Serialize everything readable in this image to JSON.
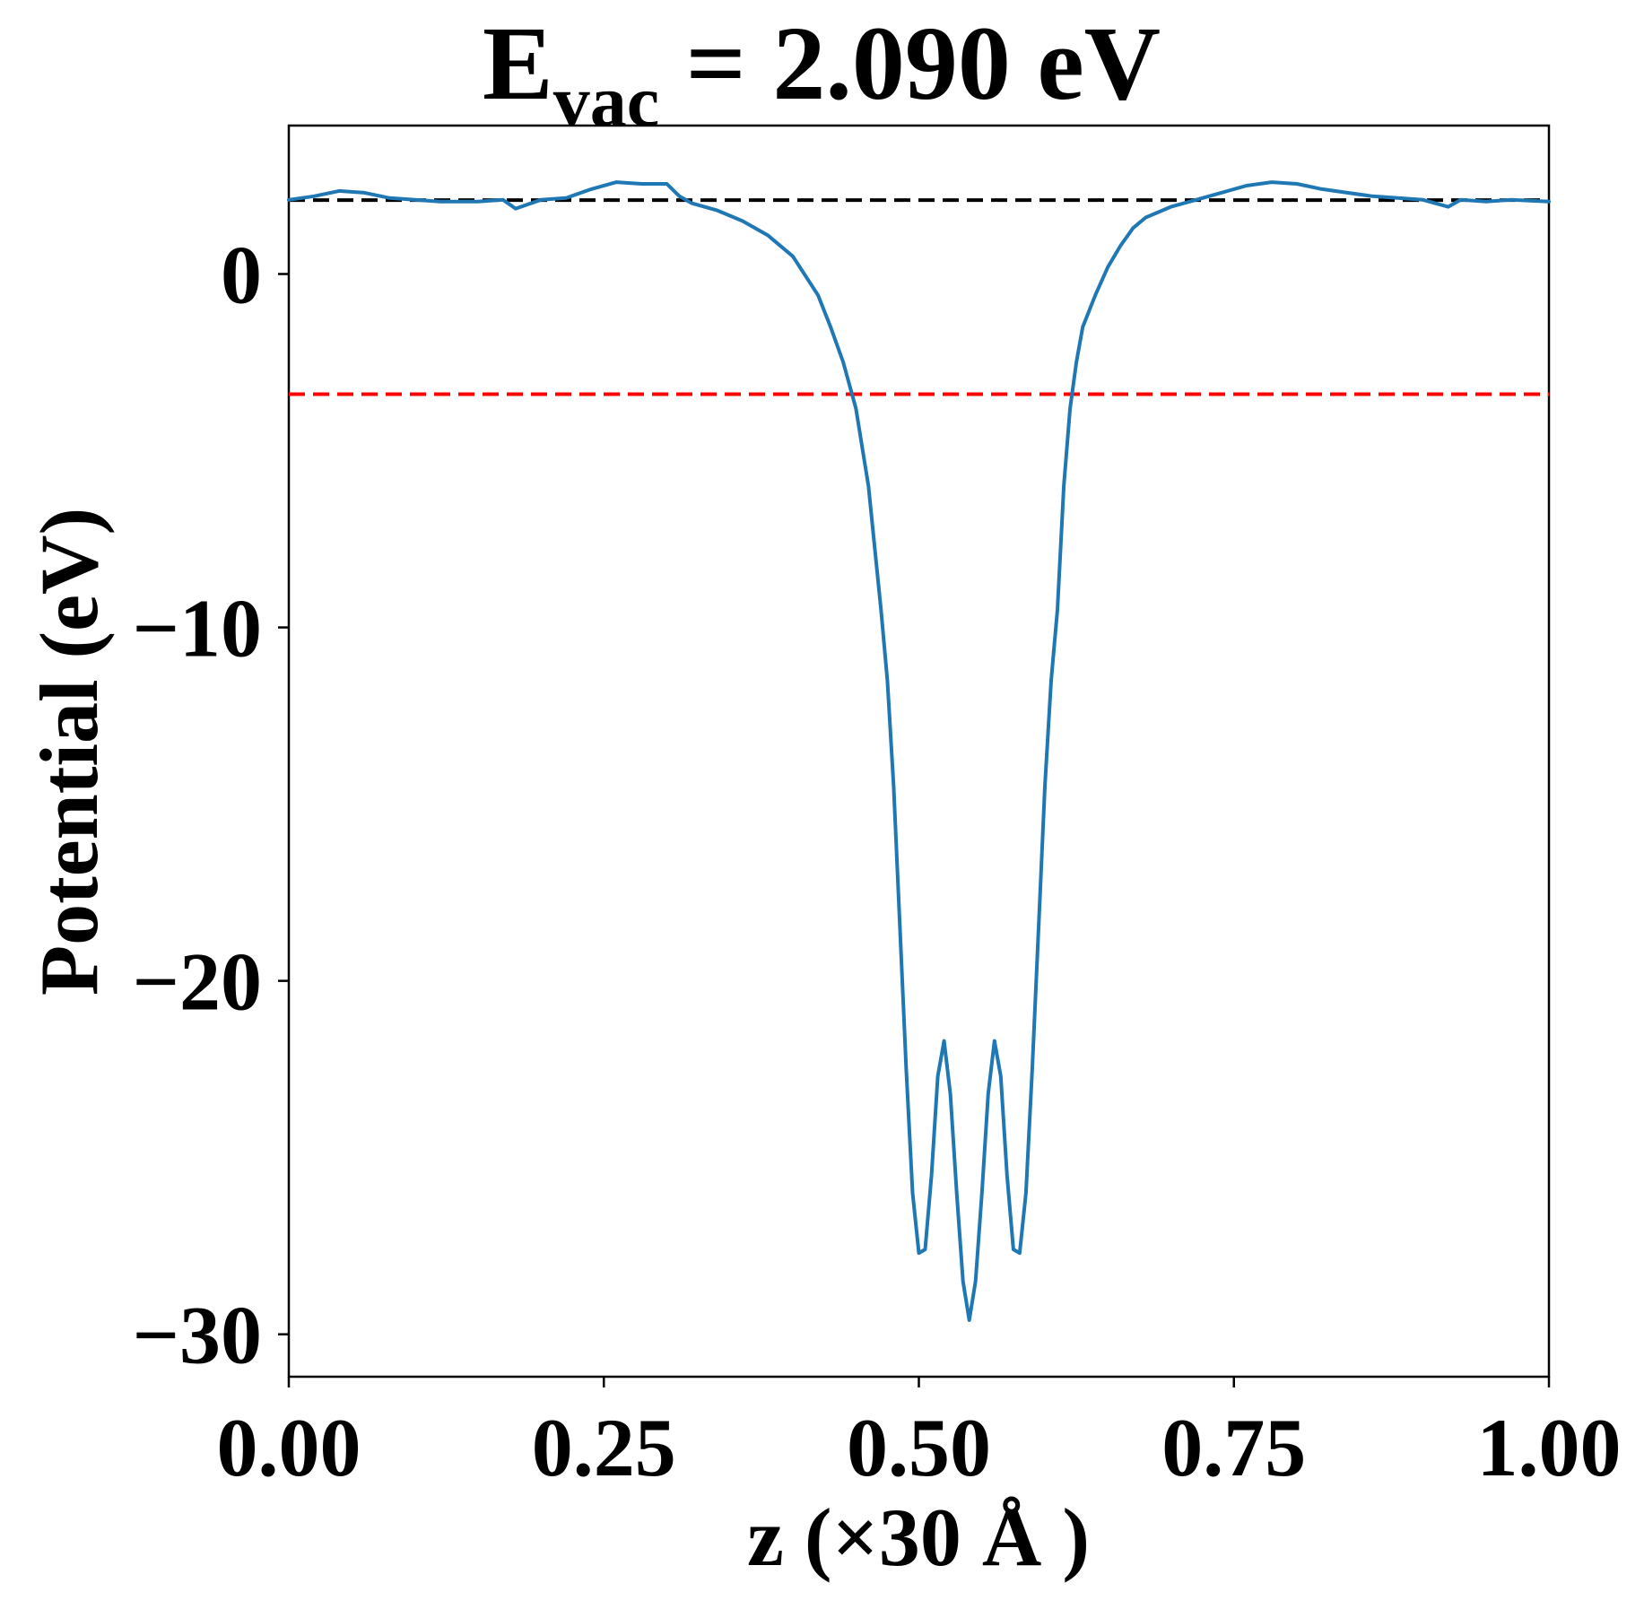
{
  "chart_data": {
    "type": "line",
    "title": "E",
    "title_sub": "vac",
    "title_rest": " = 2.090 eV",
    "xlabel": "z (×30 Å )",
    "ylabel": "Potential (eV)",
    "xlim": [
      0.0,
      1.0
    ],
    "ylim": [
      -31.2,
      4.2
    ],
    "x_ticks": [
      0.0,
      0.25,
      0.5,
      0.75,
      1.0
    ],
    "x_tick_labels": [
      "0.00",
      "0.25",
      "0.50",
      "0.75",
      "1.00"
    ],
    "y_ticks": [
      0,
      -10,
      -20,
      -30
    ],
    "y_tick_labels": [
      "0",
      "−10",
      "−20",
      "−30"
    ],
    "grid": false,
    "colors": {
      "series": "#1f77b4",
      "vacuum_line": "#000000",
      "fermi_line": "#ff0000"
    },
    "reference_lines": [
      {
        "y": 2.09,
        "style": "dashed",
        "color": "#000000"
      },
      {
        "y": -3.4,
        "style": "dashed",
        "color": "#ff0000"
      }
    ],
    "series": [
      {
        "x": [
          0.0,
          0.02,
          0.04,
          0.06,
          0.08,
          0.1,
          0.12,
          0.15,
          0.17,
          0.18,
          0.2,
          0.22,
          0.24,
          0.26,
          0.28,
          0.3,
          0.31,
          0.32,
          0.34,
          0.36,
          0.38,
          0.4,
          0.42,
          0.43,
          0.44,
          0.45,
          0.46,
          0.47,
          0.475,
          0.48,
          0.485,
          0.49,
          0.495,
          0.5,
          0.505,
          0.51,
          0.515,
          0.52,
          0.525,
          0.53,
          0.535,
          0.54,
          0.545,
          0.55,
          0.555,
          0.56,
          0.565,
          0.57,
          0.575,
          0.58,
          0.585,
          0.59,
          0.595,
          0.6,
          0.605,
          0.61,
          0.615,
          0.62,
          0.625,
          0.63,
          0.64,
          0.65,
          0.66,
          0.67,
          0.68,
          0.7,
          0.72,
          0.74,
          0.76,
          0.78,
          0.8,
          0.82,
          0.84,
          0.86,
          0.88,
          0.9,
          0.92,
          0.93,
          0.95,
          0.97,
          1.0
        ],
        "y": [
          2.1,
          2.2,
          2.35,
          2.3,
          2.15,
          2.1,
          2.05,
          2.05,
          2.1,
          1.85,
          2.1,
          2.15,
          2.4,
          2.6,
          2.55,
          2.55,
          2.2,
          2.0,
          1.8,
          1.5,
          1.1,
          0.5,
          -0.6,
          -1.5,
          -2.5,
          -3.8,
          -6.0,
          -9.5,
          -11.5,
          -14.5,
          -18.5,
          -22.5,
          -26.0,
          -27.7,
          -27.6,
          -25.5,
          -22.7,
          -21.7,
          -23.2,
          -26.0,
          -28.5,
          -29.6,
          -28.5,
          -26.0,
          -23.2,
          -21.7,
          -22.7,
          -25.5,
          -27.6,
          -27.7,
          -26.0,
          -22.5,
          -18.5,
          -14.5,
          -11.5,
          -9.5,
          -6.0,
          -3.8,
          -2.5,
          -1.5,
          -0.6,
          0.2,
          0.8,
          1.3,
          1.6,
          1.9,
          2.1,
          2.3,
          2.5,
          2.6,
          2.55,
          2.4,
          2.3,
          2.2,
          2.15,
          2.1,
          1.9,
          2.1,
          2.05,
          2.1,
          2.05
        ]
      }
    ]
  }
}
